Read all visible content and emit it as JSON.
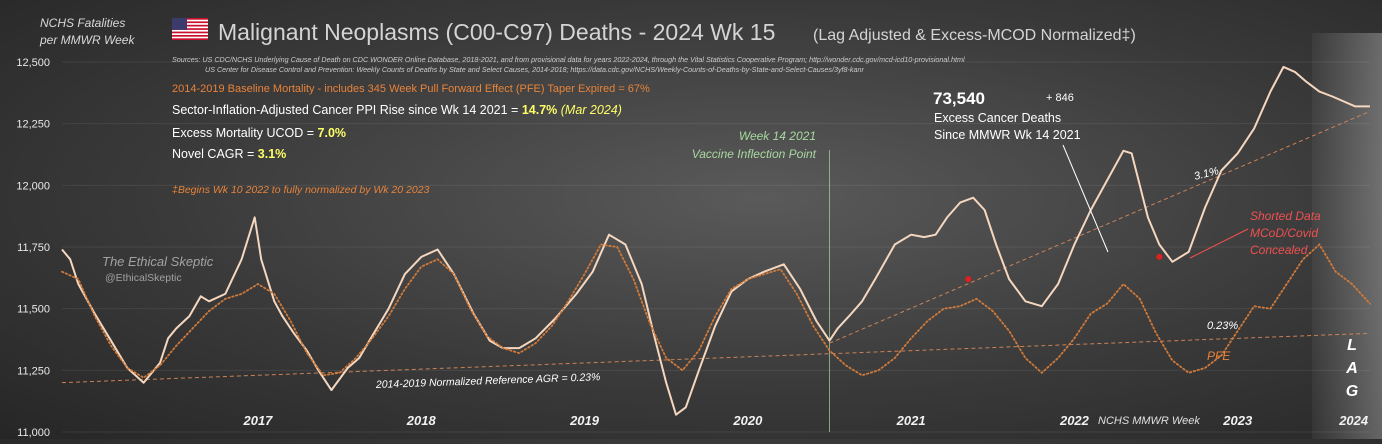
{
  "header": {
    "ylabel_line1": "NCHS Fatalities",
    "ylabel_line2": "per MMWR Week",
    "title": "Malignant Neoplasms (C00-C97) Deaths - 2024 Wk 15",
    "title_suffix": "(Lag Adjusted & Excess-MCOD Normalized‡)",
    "sources_line1": "Sources:  US CDC/NCHS Underlying Cause of Death on CDC WONDER Online Database, 2018-2021, and from provisional data for years 2022-2024, through the Vital Statistics Cooperative Program; http://wonder.cdc.gov/mcd-icd10-provisional.html",
    "sources_line2": "US Center for Disease Control and Prevention: Weekly Counts of Deaths by State and Select Causes, 2014-2018; https://data.cdc.gov/NCHS/Weekly-Counts-of-Deaths-by-State-and-Select-Causes/3yf8-kanr"
  },
  "annotations": {
    "baseline": "2014-2019 Baseline Mortality - includes 345 Week Pull Forward Effect (PFE) Taper Expired =   67%",
    "ppi_label": "Sector-Inflation-Adjusted Cancer PPI Rise since Wk 14 2021  = ",
    "ppi_value": "14.7%",
    "ppi_note": "(Mar 2024)",
    "excess_label": "Excess Mortality  UCOD = ",
    "excess_value": "7.0%",
    "cagr_label": "Novel CAGR = ",
    "cagr_value": "3.1%",
    "footnote": "‡Begins Wk 10 2022 to fully normalized by Wk 20 2023",
    "inflection_line1": "Week 14 2021",
    "inflection_line2": "Vaccine Inflection Point",
    "excess_count": "73,540",
    "excess_plus": "+ 846",
    "excess_desc1": "Excess Cancer Deaths",
    "excess_desc2": "Since MMWR Wk 14 2021",
    "cagr_line_label": "3.1%",
    "baseline_agr_label": "0.23%",
    "reference_agr": "2014-2019 Normalized Reference AGR = 0.23%",
    "pfe_label": "PFE",
    "shorted_line1": "Shorted Data",
    "shorted_line2": "MCoD/Covid",
    "shorted_line3": "Concealed",
    "lag_l": "L",
    "lag_a": "A",
    "lag_g": "G",
    "axis_caption": "NCHS MMWR Week",
    "watermark1": "The Ethical Skeptic",
    "watermark2": "@EthicalSkeptic"
  },
  "colors": {
    "deaths_line": "#f5d7c0",
    "baseline_dotted": "#d07a3a",
    "trend_dashed": "#d98a5a",
    "accent_orange": "#e8833a",
    "highlight_yellow": "#ffff66",
    "marker_red": "#e02020",
    "shorted_text": "#f05050"
  },
  "chart_data": {
    "type": "line",
    "title": "Malignant Neoplasms (C00-C97) Deaths - 2024 Wk 15",
    "ylabel": "NCHS Fatalities per MMWR Week",
    "xlabel": "NCHS MMWR Week",
    "ylim": [
      11000,
      12500
    ],
    "yticks": [
      11000,
      11250,
      11500,
      11750,
      12000,
      12250,
      12500
    ],
    "ytick_labels": [
      "11,000",
      "11,250",
      "11,500",
      "11,750",
      "12,000",
      "12,250",
      "12,500"
    ],
    "xlim": [
      2016.3,
      2024.31
    ],
    "x_ticks": [
      2017,
      2018,
      2019,
      2020,
      2021,
      2022,
      2023,
      2024
    ],
    "x_tick_labels": [
      "2017",
      "2018",
      "2019",
      "2020",
      "2021",
      "2022",
      "2023",
      "2024"
    ],
    "grid": true,
    "series": [
      {
        "name": "",
        "style": "solid",
        "x": [
          2016.3,
          2016.35,
          2016.4,
          2016.5,
          2016.6,
          2016.7,
          2016.8,
          2016.9,
          2016.95,
          2017.0,
          2017.08,
          2017.15,
          2017.2,
          2017.3,
          2017.4,
          2017.48,
          2017.52,
          2017.6,
          2017.65,
          2017.72,
          2017.8,
          2017.87,
          2017.95,
          2018.05,
          2018.12,
          2018.2,
          2018.3,
          2018.4,
          2018.5,
          2018.6,
          2018.7,
          2018.82,
          2018.92,
          2019.0,
          2019.1,
          2019.2,
          2019.32,
          2019.45,
          2019.55,
          2019.65,
          2019.75,
          2019.85,
          2019.93,
          2020.0,
          2020.06,
          2020.12,
          2020.2,
          2020.3,
          2020.4,
          2020.5,
          2020.6,
          2020.72,
          2020.82,
          2020.92,
          2021.0,
          2021.05,
          2021.12,
          2021.2,
          2021.28,
          2021.4,
          2021.5,
          2021.58,
          2021.65,
          2021.72,
          2021.8,
          2021.88,
          2021.95,
          2022.02,
          2022.1,
          2022.2,
          2022.3,
          2022.4,
          2022.5,
          2022.6,
          2022.7,
          2022.8,
          2022.85,
          2022.9,
          2022.95,
          2023.02,
          2023.1,
          2023.2,
          2023.3,
          2023.4,
          2023.5,
          2023.6,
          2023.7,
          2023.78,
          2023.85,
          2023.92,
          2024.0,
          2024.08,
          2024.15,
          2024.22,
          2024.31
        ],
        "values": [
          11740,
          11700,
          11600,
          11480,
          11370,
          11260,
          11200,
          11280,
          11380,
          11420,
          11470,
          11550,
          11530,
          11560,
          11700,
          11870,
          11700,
          11530,
          11470,
          11400,
          11330,
          11250,
          11170,
          11260,
          11300,
          11390,
          11500,
          11640,
          11710,
          11740,
          11640,
          11480,
          11370,
          11340,
          11340,
          11380,
          11460,
          11560,
          11650,
          11800,
          11760,
          11600,
          11380,
          11200,
          11070,
          11100,
          11250,
          11430,
          11570,
          11620,
          11650,
          11680,
          11580,
          11450,
          11370,
          11420,
          11470,
          11530,
          11620,
          11760,
          11800,
          11790,
          11800,
          11870,
          11930,
          11950,
          11900,
          11760,
          11620,
          11530,
          11510,
          11600,
          11760,
          11900,
          12020,
          12140,
          12130,
          12000,
          11870,
          11760,
          11690,
          11730,
          11910,
          12060,
          12130,
          12230,
          12380,
          12480,
          12460,
          12420,
          12380,
          12360,
          12340,
          12320,
          12320
        ]
      },
      {
        "name": "",
        "style": "dotted",
        "x": [
          2016.3,
          2016.4,
          2016.5,
          2016.6,
          2016.7,
          2016.8,
          2016.9,
          2017.0,
          2017.1,
          2017.2,
          2017.3,
          2017.4,
          2017.5,
          2017.6,
          2017.7,
          2017.8,
          2017.9,
          2018.0,
          2018.1,
          2018.2,
          2018.3,
          2018.4,
          2018.5,
          2018.6,
          2018.7,
          2018.8,
          2018.9,
          2019.0,
          2019.1,
          2019.2,
          2019.3,
          2019.4,
          2019.5,
          2019.6,
          2019.7,
          2019.8,
          2019.9,
          2020.0,
          2020.1,
          2020.2,
          2020.3,
          2020.4,
          2020.5,
          2020.6,
          2020.7,
          2020.8,
          2020.9,
          2021.0,
          2021.1,
          2021.2,
          2021.3,
          2021.4,
          2021.5,
          2021.6,
          2021.7,
          2021.8,
          2021.9,
          2022.0,
          2022.1,
          2022.2,
          2022.3,
          2022.4,
          2022.5,
          2022.6,
          2022.7,
          2022.8,
          2022.9,
          2023.0,
          2023.1,
          2023.2,
          2023.3,
          2023.4,
          2023.5,
          2023.6,
          2023.7,
          2023.8,
          2023.9,
          2024.0,
          2024.1,
          2024.2,
          2024.31
        ],
        "values": [
          11650,
          11620,
          11470,
          11350,
          11260,
          11220,
          11270,
          11350,
          11420,
          11490,
          11540,
          11560,
          11600,
          11560,
          11450,
          11320,
          11230,
          11240,
          11300,
          11380,
          11470,
          11580,
          11670,
          11700,
          11640,
          11500,
          11390,
          11340,
          11320,
          11360,
          11430,
          11530,
          11640,
          11760,
          11750,
          11620,
          11440,
          11300,
          11250,
          11330,
          11470,
          11580,
          11620,
          11640,
          11660,
          11560,
          11430,
          11330,
          11270,
          11230,
          11250,
          11300,
          11380,
          11450,
          11500,
          11510,
          11540,
          11490,
          11410,
          11300,
          11240,
          11300,
          11380,
          11480,
          11520,
          11600,
          11540,
          11400,
          11290,
          11240,
          11260,
          11310,
          11410,
          11510,
          11500,
          11600,
          11700,
          11760,
          11650,
          11600,
          11520
        ]
      }
    ],
    "trend_lines": [
      {
        "label": "3.1%",
        "x": [
          2021.0,
          2024.31
        ],
        "y": [
          11360,
          12300
        ]
      },
      {
        "label": "0.23%",
        "x": [
          2016.3,
          2024.31
        ],
        "y": [
          11200,
          11400
        ]
      }
    ],
    "vertical_marker_x": 2021.0,
    "red_points": [
      {
        "x": 2021.85,
        "y": 11620
      },
      {
        "x": 2023.02,
        "y": 11710
      }
    ]
  }
}
